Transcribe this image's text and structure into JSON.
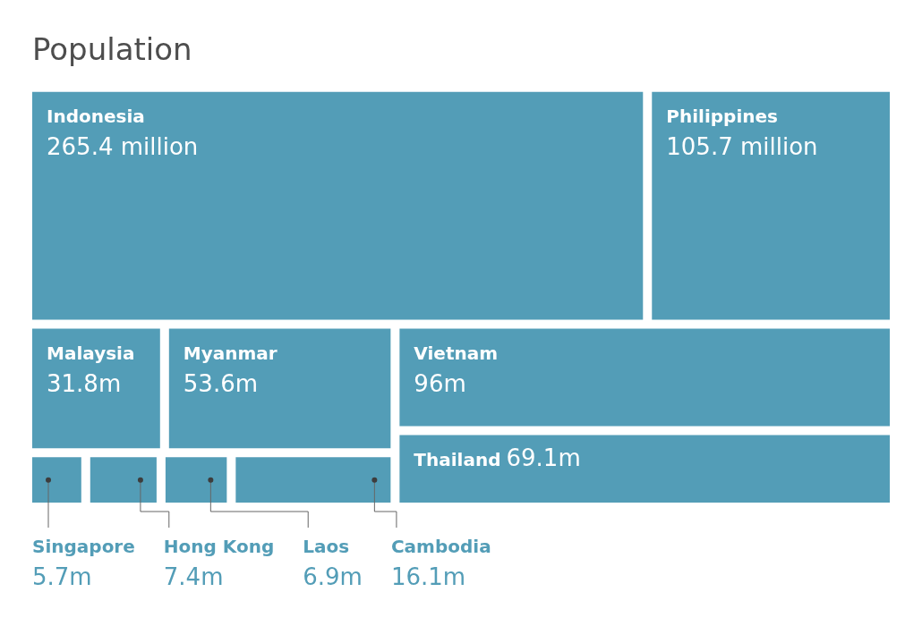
{
  "chart_data": {
    "type": "other",
    "title": "Population",
    "categories": [
      "Indonesia",
      "Philippines",
      "Malaysia",
      "Myanmar",
      "Singapore",
      "Hong Kong",
      "Laos",
      "Cambodia",
      "Vietnam",
      "Thailand"
    ],
    "values": [
      265.4,
      105.7,
      31.8,
      53.6,
      5.7,
      7.4,
      6.9,
      16.1,
      96,
      69.1
    ],
    "value_labels": [
      "265.4 million",
      "105.7 million",
      "31.8m",
      "53.6m",
      "5.7m",
      "7.4m",
      "6.9m",
      "16.1m",
      "96m",
      "69.1m"
    ],
    "color": "#539db7"
  }
}
